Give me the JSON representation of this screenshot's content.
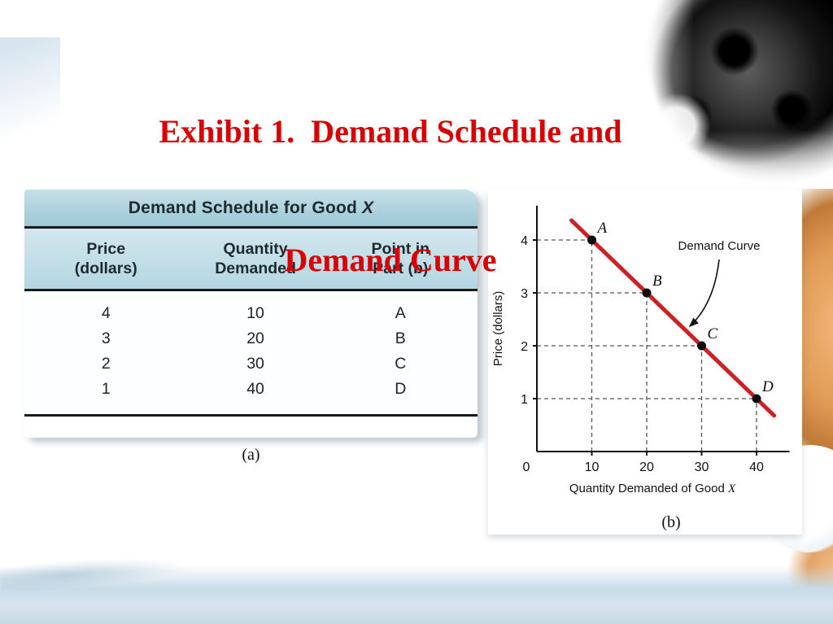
{
  "slide": {
    "title_line1": "Exhibit 1.  Demand Schedule and",
    "title_line2": "Demand Curve",
    "label_a": "(a)",
    "label_b": "(b)",
    "title_color": "#d80000"
  },
  "table": {
    "title_prefix": "Demand Schedule for Good ",
    "title_italic": "X",
    "columns": [
      "Price\n(dollars)",
      "Quantity\nDemanded",
      "Point in\nPart (b)"
    ],
    "rows": [
      {
        "price": "4",
        "quantity": "10",
        "point": "A"
      },
      {
        "price": "3",
        "quantity": "20",
        "point": "B"
      },
      {
        "price": "2",
        "quantity": "30",
        "point": "C"
      },
      {
        "price": "1",
        "quantity": "40",
        "point": "D"
      }
    ],
    "header_color": "#aed3df"
  },
  "chart_data": {
    "type": "line",
    "points": [
      {
        "x": 10,
        "y": 4,
        "label": "A"
      },
      {
        "x": 20,
        "y": 3,
        "label": "B"
      },
      {
        "x": 30,
        "y": 2,
        "label": "C"
      },
      {
        "x": 40,
        "y": 1,
        "label": "D"
      }
    ],
    "line_x_range": [
      6.3,
      43.2
    ],
    "line_color": "#cc2127",
    "xticks": [
      0,
      10,
      20,
      30,
      40
    ],
    "yticks": [
      1,
      2,
      3,
      4
    ],
    "xlim": [
      0,
      46
    ],
    "ylim": [
      0,
      4.65
    ],
    "xlabel": "Quantity Demanded of Good ",
    "xlabel_italic": "X",
    "ylabel": "Price (dollars)",
    "annotation": "Demand Curve",
    "grid": false,
    "guides": "dashed",
    "legend": "none"
  }
}
